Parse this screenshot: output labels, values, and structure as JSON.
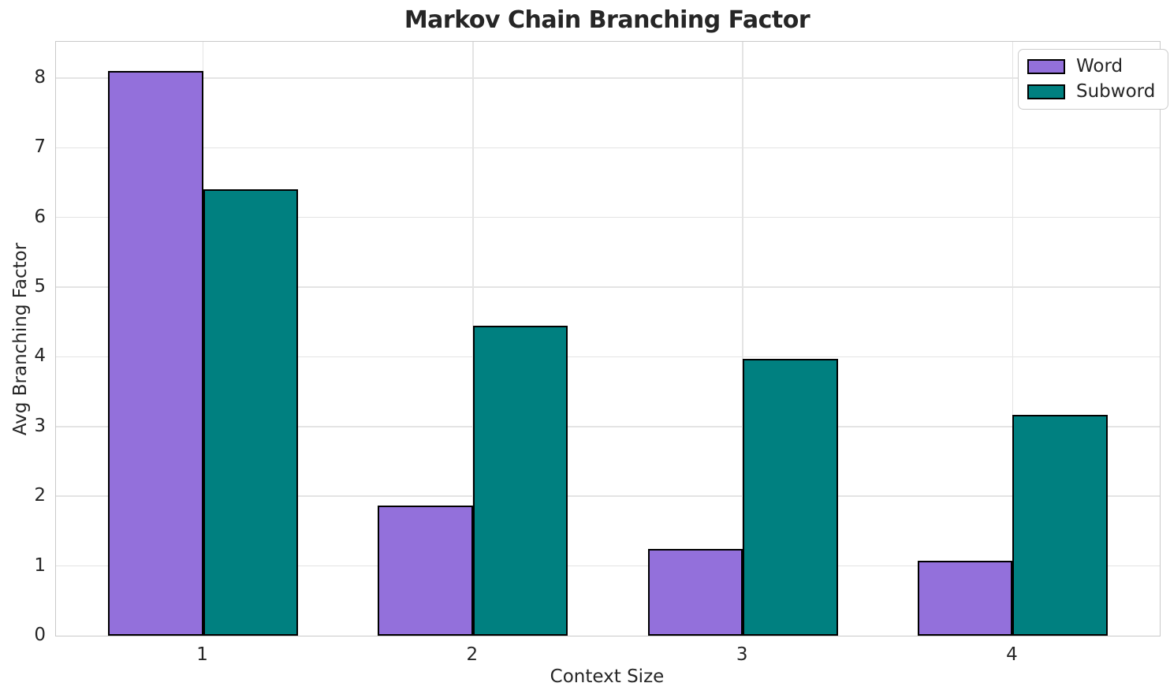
{
  "chart_data": {
    "type": "bar",
    "title": "Markov Chain Branching Factor",
    "xlabel": "Context Size",
    "ylabel": "Avg Branching Factor",
    "categories": [
      "1",
      "2",
      "3",
      "4"
    ],
    "series": [
      {
        "name": "Word",
        "color": "#9370DB",
        "values": [
          8.1,
          1.87,
          1.24,
          1.08
        ]
      },
      {
        "name": "Subword",
        "color": "#008080",
        "values": [
          6.4,
          4.45,
          3.97,
          3.17
        ]
      }
    ],
    "yticks": [
      0,
      1,
      2,
      3,
      4,
      5,
      6,
      7,
      8
    ],
    "ylim": [
      0,
      8.52
    ],
    "bar_edge_color": "#000000",
    "grid": true,
    "legend_position": "upper right"
  },
  "colors": {
    "word": "#9370DB",
    "subword": "#008080",
    "bar_edge": "#000000",
    "background": "#ffffff"
  }
}
